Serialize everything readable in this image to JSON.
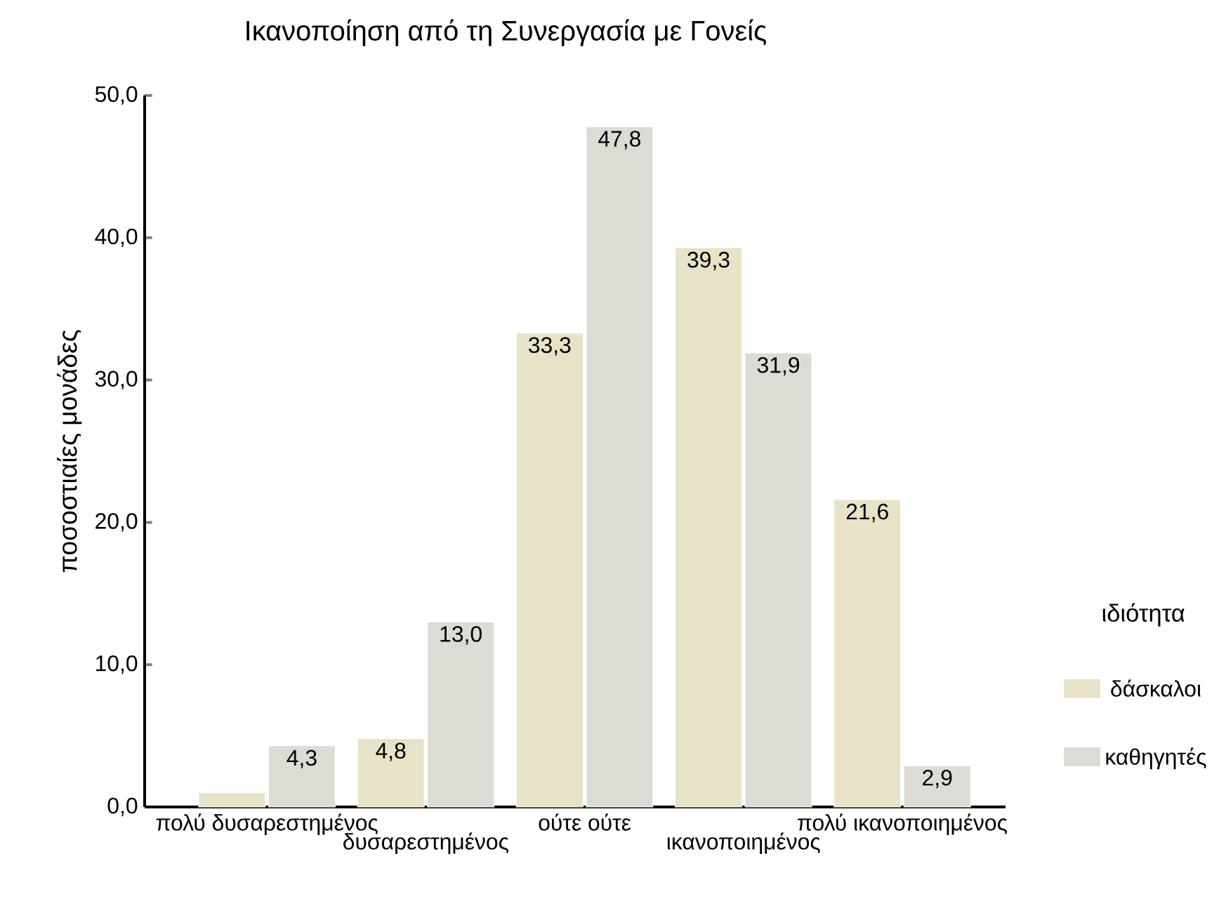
{
  "chart_data": {
    "type": "bar",
    "title": "Ικανοποίηση από τη Συνεργασία με Γονείς",
    "ylabel": "ποσοστιαίες μονάδες",
    "legend_title": "ιδιότητα",
    "categories": [
      "πολύ δυσαρεστημένος",
      "δυσαρεστημένος",
      "ούτε ούτε",
      "ικανοποιημένος",
      "πολύ ικανοποιημένος"
    ],
    "series": [
      {
        "name": "δάσκαλοι",
        "color": "#e8e2c6",
        "values": [
          1.0,
          4.8,
          33.3,
          39.3,
          21.6
        ],
        "value_labels": [
          null,
          "4,8",
          "33,3",
          "39,3",
          "21,6"
        ]
      },
      {
        "name": "καθηγητές",
        "color": "#dcdcd4",
        "values": [
          4.3,
          13.0,
          47.8,
          31.9,
          2.9
        ],
        "value_labels": [
          "4,3",
          "13,0",
          "47,8",
          "31,9",
          "2,9"
        ]
      }
    ],
    "ylim": [
      0,
      50
    ],
    "yticks": [
      {
        "value": 0,
        "label": "0,0"
      },
      {
        "value": 10,
        "label": "10,0"
      },
      {
        "value": 20,
        "label": "20,0"
      },
      {
        "value": 30,
        "label": "30,0"
      },
      {
        "value": 40,
        "label": "40,0"
      },
      {
        "value": 50,
        "label": "50,0"
      }
    ],
    "legend": "right"
  }
}
